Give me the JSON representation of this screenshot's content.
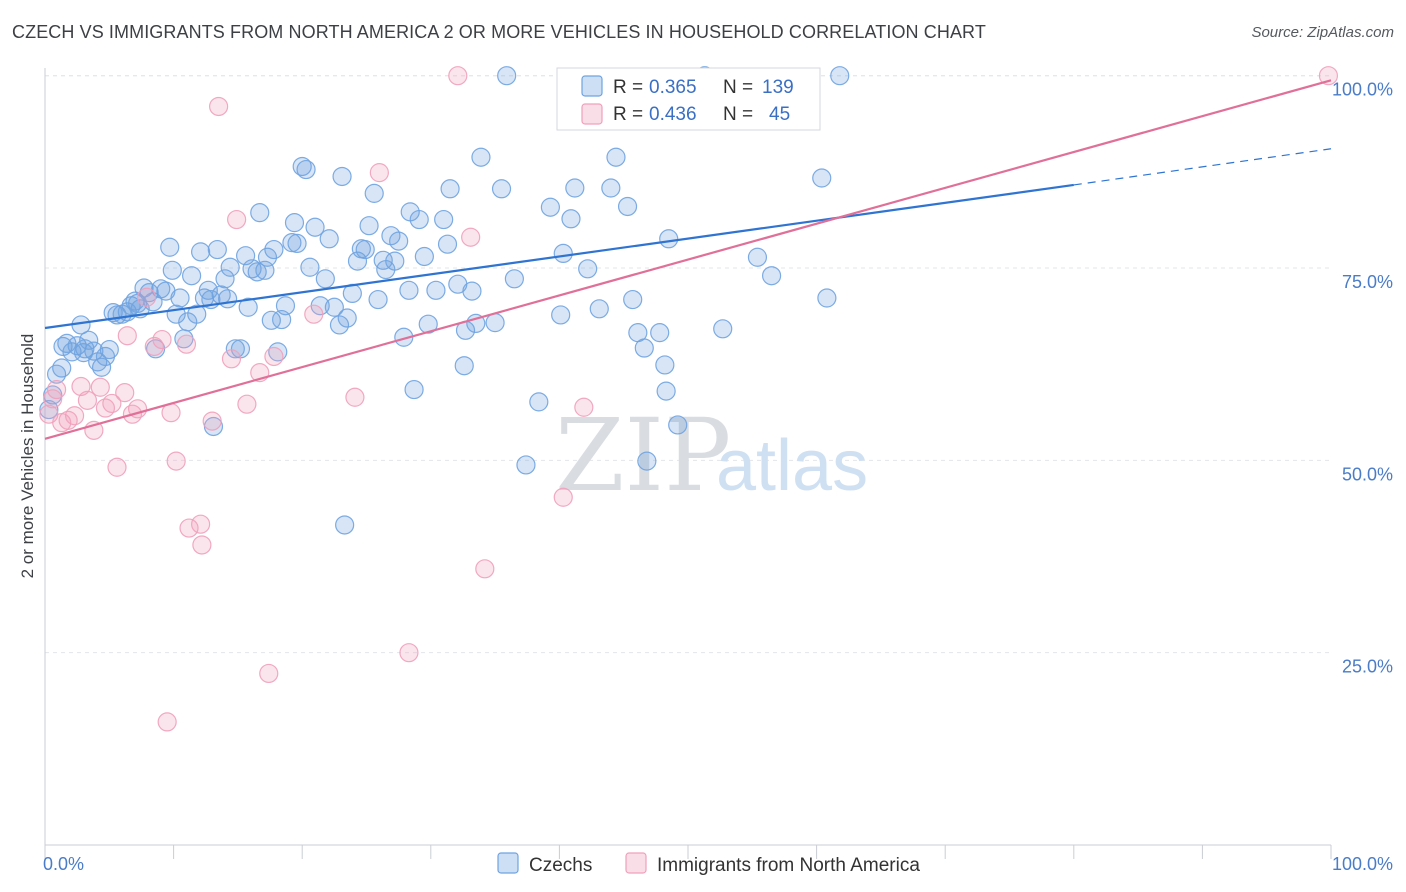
{
  "title": "CZECH VS IMMIGRANTS FROM NORTH AMERICA 2 OR MORE VEHICLES IN HOUSEHOLD CORRELATION CHART",
  "source": "Source: ZipAtlas.com",
  "watermark": {
    "zip": "ZIP",
    "atlas": "atlas"
  },
  "colors": {
    "blue": "#6fa3e0",
    "blue_line": "#2f74d0",
    "pink": "#f0a0bb",
    "pink_line": "#e07098",
    "grid": "#e3e6ea",
    "tick_text": "#4a7cc7"
  },
  "stats": [
    {
      "r_label": "R = ",
      "r_value": "0.365",
      "n_label": "N = ",
      "n_value": "139"
    },
    {
      "r_label": "R = ",
      "r_value": "0.436",
      "n_label": "N = ",
      "n_value": "45"
    }
  ],
  "chart_data": {
    "type": "scatter",
    "title": "CZECH VS IMMIGRANTS FROM NORTH AMERICA 2 OR MORE VEHICLES IN HOUSEHOLD CORRELATION CHART",
    "xlabel": "",
    "ylabel": "2 or more Vehicles in Household",
    "xlim": [
      0,
      100
    ],
    "ylim": [
      0,
      101
    ],
    "x_ticks": [
      "0.0%",
      "100.0%"
    ],
    "y_ticks": [
      {
        "value": 25,
        "label": "25.0%"
      },
      {
        "value": 50,
        "label": "50.0%"
      },
      {
        "value": 75,
        "label": "75.0%"
      },
      {
        "value": 100,
        "label": "100.0%"
      }
    ],
    "grid": true,
    "legend_position": "bottom-center",
    "series": [
      {
        "name": "Czechs",
        "color": "#6fa3e0",
        "trend": {
          "x": [
            0,
            80
          ],
          "y": [
            67.2,
            85.8
          ],
          "dashed_to": [
            100,
            90.5
          ]
        },
        "points": [
          [
            0.3,
            56.6
          ],
          [
            0.6,
            58.5
          ],
          [
            0.9,
            61.2
          ],
          [
            1.3,
            62.0
          ],
          [
            1.4,
            64.8
          ],
          [
            1.7,
            65.2
          ],
          [
            2.1,
            64.1
          ],
          [
            2.5,
            64.9
          ],
          [
            2.8,
            67.6
          ],
          [
            3.1,
            64.5
          ],
          [
            3.4,
            65.6
          ],
          [
            3.8,
            64.2
          ],
          [
            4.1,
            62.8
          ],
          [
            4.4,
            62.1
          ],
          [
            4.7,
            63.5
          ],
          [
            5.0,
            64.4
          ],
          [
            5.3,
            69.2
          ],
          [
            5.6,
            68.9
          ],
          [
            6.0,
            69.0
          ],
          [
            6.4,
            69.3
          ],
          [
            6.7,
            70.1
          ],
          [
            7.0,
            70.7
          ],
          [
            7.4,
            69.7
          ],
          [
            7.7,
            72.4
          ],
          [
            8.1,
            71.8
          ],
          [
            8.4,
            70.6
          ],
          [
            8.6,
            64.5
          ],
          [
            9.0,
            72.3
          ],
          [
            9.4,
            72.0
          ],
          [
            9.7,
            77.7
          ],
          [
            9.9,
            74.7
          ],
          [
            10.2,
            69.0
          ],
          [
            10.5,
            71.1
          ],
          [
            10.8,
            65.8
          ],
          [
            11.1,
            68.0
          ],
          [
            11.4,
            74.0
          ],
          [
            11.8,
            69.0
          ],
          [
            12.1,
            77.1
          ],
          [
            12.4,
            71.1
          ],
          [
            12.7,
            72.1
          ],
          [
            13.1,
            54.4
          ],
          [
            13.4,
            77.4
          ],
          [
            13.7,
            71.5
          ],
          [
            14.0,
            73.6
          ],
          [
            14.4,
            75.1
          ],
          [
            14.8,
            64.5
          ],
          [
            15.2,
            64.5
          ],
          [
            15.6,
            76.6
          ],
          [
            15.8,
            69.9
          ],
          [
            16.1,
            74.9
          ],
          [
            16.5,
            74.5
          ],
          [
            16.7,
            82.2
          ],
          [
            17.1,
            74.7
          ],
          [
            17.3,
            76.4
          ],
          [
            17.6,
            68.2
          ],
          [
            17.8,
            77.4
          ],
          [
            18.1,
            64.1
          ],
          [
            18.4,
            68.3
          ],
          [
            18.7,
            70.1
          ],
          [
            19.2,
            78.3
          ],
          [
            19.4,
            80.9
          ],
          [
            19.6,
            78.2
          ],
          [
            20.0,
            88.2
          ],
          [
            20.3,
            87.8
          ],
          [
            20.6,
            75.1
          ],
          [
            21.0,
            80.3
          ],
          [
            21.4,
            70.1
          ],
          [
            21.8,
            73.6
          ],
          [
            22.1,
            78.8
          ],
          [
            22.5,
            69.9
          ],
          [
            22.9,
            67.6
          ],
          [
            23.1,
            86.9
          ],
          [
            23.5,
            68.5
          ],
          [
            23.9,
            71.7
          ],
          [
            24.3,
            75.9
          ],
          [
            24.6,
            77.5
          ],
          [
            24.9,
            77.4
          ],
          [
            25.2,
            80.5
          ],
          [
            25.6,
            84.7
          ],
          [
            25.9,
            70.9
          ],
          [
            26.3,
            76.0
          ],
          [
            26.9,
            79.2
          ],
          [
            27.2,
            75.9
          ],
          [
            27.5,
            78.5
          ],
          [
            27.9,
            66.0
          ],
          [
            28.3,
            72.1
          ],
          [
            28.4,
            82.3
          ],
          [
            28.7,
            59.2
          ],
          [
            29.1,
            81.3
          ],
          [
            29.5,
            76.5
          ],
          [
            29.8,
            67.7
          ],
          [
            30.4,
            72.1
          ],
          [
            31.0,
            81.3
          ],
          [
            31.3,
            78.1
          ],
          [
            31.5,
            85.3
          ],
          [
            32.1,
            72.9
          ],
          [
            32.7,
            66.9
          ],
          [
            32.6,
            62.3
          ],
          [
            33.2,
            72.0
          ],
          [
            33.5,
            67.8
          ],
          [
            33.9,
            89.4
          ],
          [
            35.0,
            67.9
          ],
          [
            35.5,
            85.3
          ],
          [
            35.9,
            100.0
          ],
          [
            36.5,
            73.6
          ],
          [
            37.4,
            49.4
          ],
          [
            38.4,
            57.6
          ],
          [
            39.3,
            82.9
          ],
          [
            40.1,
            68.9
          ],
          [
            40.3,
            76.9
          ],
          [
            40.9,
            81.4
          ],
          [
            41.2,
            85.4
          ],
          [
            42.2,
            74.9
          ],
          [
            43.1,
            69.7
          ],
          [
            44.0,
            85.4
          ],
          [
            44.4,
            89.4
          ],
          [
            45.3,
            83.0
          ],
          [
            45.7,
            70.9
          ],
          [
            46.1,
            66.6
          ],
          [
            46.6,
            64.6
          ],
          [
            46.8,
            49.9
          ],
          [
            47.8,
            66.6
          ],
          [
            48.2,
            62.4
          ],
          [
            48.3,
            59.0
          ],
          [
            48.5,
            78.8
          ],
          [
            49.2,
            54.6
          ],
          [
            51.3,
            100.0
          ],
          [
            52.7,
            67.1
          ],
          [
            55.4,
            76.4
          ],
          [
            56.5,
            74.0
          ],
          [
            60.4,
            86.7
          ],
          [
            60.8,
            71.1
          ],
          [
            61.8,
            100.0
          ],
          [
            23.3,
            41.6
          ],
          [
            14.2,
            71.0
          ],
          [
            7.2,
            70.4
          ],
          [
            3.0,
            64.0
          ],
          [
            12.9,
            70.9
          ],
          [
            26.5,
            74.8
          ]
        ]
      },
      {
        "name": "Immigrants from North America",
        "color": "#f0a0bb",
        "trend": {
          "x": [
            0,
            100
          ],
          "y": [
            52.8,
            99.4
          ]
        },
        "points": [
          [
            0.3,
            56.0
          ],
          [
            0.6,
            58.0
          ],
          [
            0.9,
            59.2
          ],
          [
            1.3,
            54.9
          ],
          [
            1.8,
            55.2
          ],
          [
            2.3,
            55.8
          ],
          [
            2.8,
            59.6
          ],
          [
            3.3,
            57.8
          ],
          [
            3.8,
            53.9
          ],
          [
            4.3,
            59.5
          ],
          [
            4.7,
            56.8
          ],
          [
            5.2,
            57.4
          ],
          [
            5.6,
            49.1
          ],
          [
            6.2,
            58.8
          ],
          [
            6.8,
            56.0
          ],
          [
            7.2,
            56.7
          ],
          [
            7.9,
            71.2
          ],
          [
            8.5,
            64.8
          ],
          [
            9.1,
            65.7
          ],
          [
            9.8,
            56.2
          ],
          [
            10.2,
            49.9
          ],
          [
            11.0,
            65.1
          ],
          [
            11.2,
            41.2
          ],
          [
            12.1,
            41.7
          ],
          [
            12.2,
            39.0
          ],
          [
            13.0,
            55.1
          ],
          [
            13.5,
            96.0
          ],
          [
            14.5,
            63.2
          ],
          [
            14.9,
            81.3
          ],
          [
            15.7,
            57.3
          ],
          [
            16.7,
            61.4
          ],
          [
            17.4,
            22.3
          ],
          [
            17.8,
            63.5
          ],
          [
            20.9,
            69.0
          ],
          [
            24.1,
            58.2
          ],
          [
            26.0,
            87.4
          ],
          [
            28.3,
            25.0
          ],
          [
            32.1,
            100.0
          ],
          [
            33.1,
            79.0
          ],
          [
            34.2,
            35.9
          ],
          [
            40.3,
            45.2
          ],
          [
            41.9,
            56.9
          ],
          [
            99.8,
            100.0
          ],
          [
            9.5,
            16.0
          ],
          [
            6.4,
            66.2
          ]
        ]
      }
    ]
  }
}
